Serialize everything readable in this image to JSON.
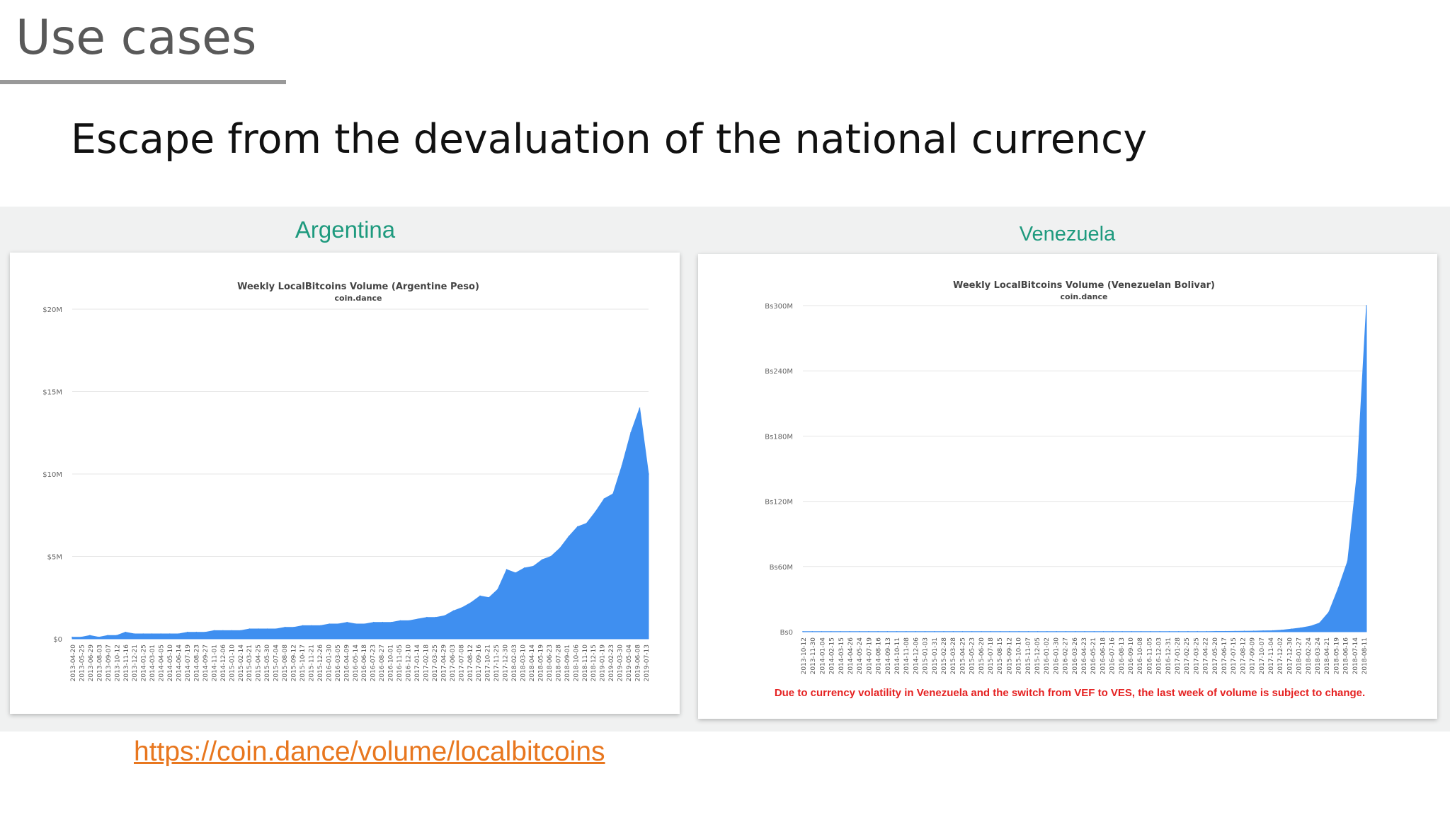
{
  "slide": {
    "title": "Use cases",
    "subtitle": "Escape from the devaluation of the national currency",
    "link": "https://coin.dance/volume/localbitcoins"
  },
  "countries": {
    "argentina": "Argentina",
    "venezuela": "Venezuela"
  },
  "colors": {
    "accent": "#1e9a7e",
    "area": "#3f8ff0",
    "link": "#e8771f",
    "warning": "#e52222"
  },
  "chart_data": [
    {
      "type": "area",
      "title": "Weekly LocalBitcoins Volume (Argentine Peso)",
      "subtitle": "coin.dance",
      "ylim": [
        0,
        20000000
      ],
      "y_ticks": [
        "$0",
        "$5M",
        "$10M",
        "$15M",
        "$20M"
      ],
      "grid": true,
      "legend": "none",
      "x_labels": [
        "2013-04-20",
        "2013-05-25",
        "2013-06-29",
        "2013-08-03",
        "2013-09-07",
        "2013-10-12",
        "2013-11-16",
        "2013-12-21",
        "2014-01-25",
        "2014-03-01",
        "2014-04-05",
        "2014-05-10",
        "2014-06-14",
        "2014-07-19",
        "2014-08-23",
        "2014-09-27",
        "2014-11-01",
        "2014-12-06",
        "2015-01-10",
        "2015-02-14",
        "2015-03-21",
        "2015-04-25",
        "2015-05-30",
        "2015-07-04",
        "2015-08-08",
        "2015-09-12",
        "2015-10-17",
        "2015-11-21",
        "2015-12-26",
        "2016-01-30",
        "2016-03-05",
        "2016-04-09",
        "2016-05-14",
        "2016-06-18",
        "2016-07-23",
        "2016-08-27",
        "2016-10-01",
        "2016-11-05",
        "2016-12-10",
        "2017-01-14",
        "2017-02-18",
        "2017-03-25",
        "2017-04-29",
        "2017-06-03",
        "2017-07-08",
        "2017-08-12",
        "2017-09-16",
        "2017-10-21",
        "2017-11-25",
        "2017-12-30",
        "2018-02-03",
        "2018-03-10",
        "2018-04-14",
        "2018-05-19",
        "2018-06-23",
        "2018-07-28",
        "2018-09-01",
        "2018-10-06",
        "2018-11-10",
        "2018-12-15",
        "2019-01-19",
        "2019-02-23",
        "2019-03-30",
        "2019-05-04",
        "2019-06-08",
        "2019-07-13"
      ],
      "series": [
        {
          "values": [
            0.1,
            0.1,
            0.2,
            0.1,
            0.2,
            0.2,
            0.4,
            0.3,
            0.3,
            0.3,
            0.3,
            0.3,
            0.3,
            0.4,
            0.4,
            0.4,
            0.5,
            0.5,
            0.5,
            0.5,
            0.6,
            0.6,
            0.6,
            0.6,
            0.7,
            0.7,
            0.8,
            0.8,
            0.8,
            0.9,
            0.9,
            1.0,
            0.9,
            0.9,
            1.0,
            1.0,
            1.0,
            1.1,
            1.1,
            1.2,
            1.3,
            1.3,
            1.4,
            1.7,
            1.9,
            2.2,
            2.6,
            2.5,
            3.0,
            4.2,
            4.0,
            4.3,
            4.4,
            4.8,
            5.0,
            5.5,
            6.2,
            6.8,
            7.0,
            7.7,
            8.5,
            8.8,
            10.5,
            12.5,
            14.0,
            10.0
          ]
        }
      ]
    },
    {
      "type": "area",
      "title": "Weekly LocalBitcoins Volume (Venezuelan Bolivar)",
      "subtitle": "coin.dance",
      "ylim": [
        0,
        300000000
      ],
      "y_ticks": [
        "Bs0",
        "Bs60M",
        "Bs120M",
        "Bs180M",
        "Bs240M",
        "Bs300M"
      ],
      "grid": true,
      "legend": "none",
      "note": "Due to currency volatility in Venezuela and the switch from VEF to VES, the last week of volume is subject to change.",
      "x_labels": [
        "2013-10-12",
        "2013-11-30",
        "2014-01-04",
        "2014-02-15",
        "2014-03-15",
        "2014-04-26",
        "2014-05-24",
        "2014-07-19",
        "2014-08-16",
        "2014-09-13",
        "2014-10-11",
        "2014-11-08",
        "2014-12-06",
        "2015-01-03",
        "2015-01-31",
        "2015-02-28",
        "2015-03-28",
        "2015-04-25",
        "2015-05-23",
        "2015-06-20",
        "2015-07-18",
        "2015-08-15",
        "2015-09-12",
        "2015-10-10",
        "2015-11-07",
        "2015-12-05",
        "2016-01-02",
        "2016-01-30",
        "2016-02-27",
        "2016-03-26",
        "2016-04-23",
        "2016-05-21",
        "2016-06-18",
        "2016-07-16",
        "2016-08-13",
        "2016-09-10",
        "2016-10-08",
        "2016-11-05",
        "2016-12-03",
        "2016-12-31",
        "2017-01-28",
        "2017-02-25",
        "2017-03-25",
        "2017-04-22",
        "2017-05-20",
        "2017-06-17",
        "2017-07-15",
        "2017-08-12",
        "2017-09-09",
        "2017-10-07",
        "2017-11-04",
        "2017-12-02",
        "2017-12-30",
        "2018-01-27",
        "2018-02-24",
        "2018-03-24",
        "2018-04-21",
        "2018-05-19",
        "2018-06-16",
        "2018-07-14",
        "2018-08-11"
      ],
      "series": [
        {
          "values": [
            0.1,
            0.1,
            0.1,
            0.1,
            0.1,
            0.1,
            0.1,
            0.1,
            0.1,
            0.1,
            0.1,
            0.1,
            0.1,
            0.1,
            0.1,
            0.1,
            0.1,
            0.1,
            0.1,
            0.1,
            0.1,
            0.1,
            0.1,
            0.1,
            0.1,
            0.1,
            0.1,
            0.1,
            0.1,
            0.1,
            0.1,
            0.1,
            0.1,
            0.1,
            0.1,
            0.1,
            0.1,
            0.1,
            0.1,
            0.1,
            0.1,
            0.2,
            0.2,
            0.2,
            0.3,
            0.3,
            0.4,
            0.5,
            0.6,
            0.8,
            1.0,
            1.5,
            2.5,
            3.5,
            5.0,
            8.0,
            18.0,
            40.0,
            65.0,
            145.0,
            300.0
          ]
        }
      ]
    }
  ]
}
